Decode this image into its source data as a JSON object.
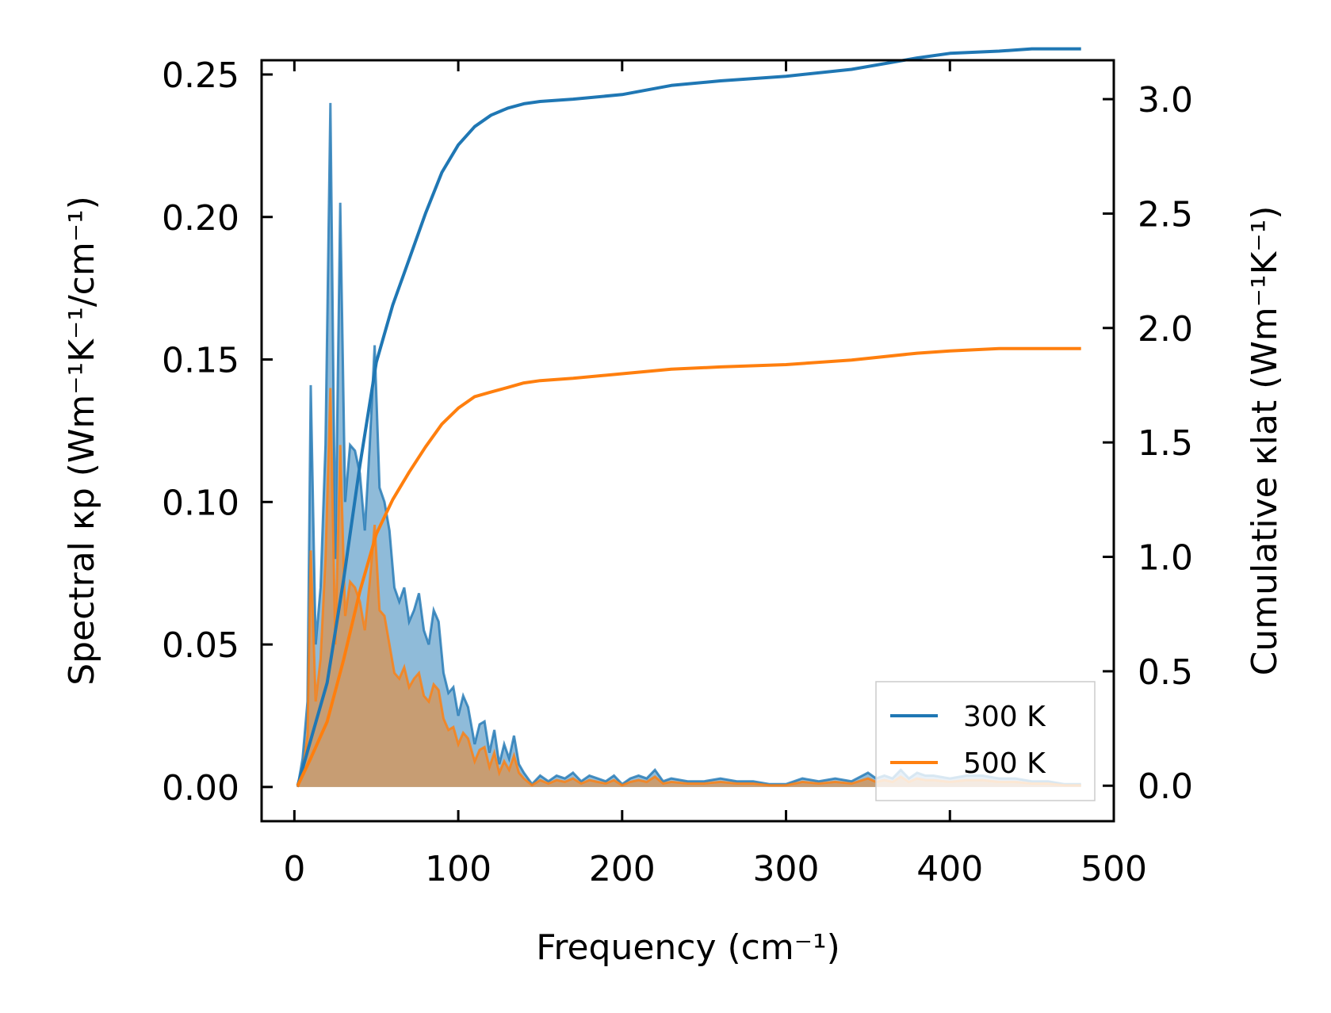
{
  "chart_data": {
    "type": "line",
    "xlabel": "Frequency (cm⁻¹)",
    "ylabel_left": "Spectral κp (Wm⁻¹K⁻¹/cm⁻¹)",
    "ylabel_right": "Cumulative κlat (Wm⁻¹K⁻¹)",
    "xlim": [
      -20,
      500
    ],
    "ylim_left": [
      -0.012,
      0.255
    ],
    "ylim_right": [
      -0.155,
      3.17
    ],
    "x_ticks": [
      0,
      100,
      200,
      300,
      400,
      500
    ],
    "y_left_ticks": [
      0.0,
      0.05,
      0.1,
      0.15,
      0.2,
      0.25
    ],
    "y_left_tick_labels": [
      "0.00",
      "0.05",
      "0.10",
      "0.15",
      "0.20",
      "0.25"
    ],
    "y_right_ticks": [
      0.0,
      0.5,
      1.0,
      1.5,
      2.0,
      2.5,
      3.0
    ],
    "y_right_tick_labels": [
      "0.0",
      "0.5",
      "1.0",
      "1.5",
      "2.0",
      "2.5",
      "3.0"
    ],
    "legend": {
      "position": "lower-right",
      "entries": [
        "300 K",
        "500 K"
      ]
    },
    "colors": {
      "300K": "#1f77b4",
      "500K": "#ff7f0e"
    },
    "series_spectral": [
      {
        "name": "300 K",
        "axis": "left",
        "kind": "filled",
        "x": [
          2,
          5,
          8,
          10,
          13,
          16,
          19,
          22,
          25,
          28,
          31,
          34,
          37,
          40,
          43,
          46,
          49,
          52,
          55,
          58,
          61,
          64,
          67,
          70,
          73,
          76,
          79,
          82,
          85,
          88,
          91,
          94,
          97,
          100,
          103,
          106,
          110,
          113,
          116,
          119,
          122,
          125,
          128,
          131,
          134,
          137,
          140,
          145,
          150,
          155,
          160,
          165,
          170,
          175,
          180,
          185,
          190,
          195,
          200,
          205,
          210,
          215,
          220,
          225,
          230,
          240,
          250,
          260,
          270,
          280,
          290,
          300,
          310,
          320,
          330,
          340,
          350,
          355,
          360,
          365,
          370,
          375,
          380,
          385,
          390,
          400,
          410,
          420,
          430,
          440,
          450,
          460,
          470,
          480
        ],
        "y": [
          0.0,
          0.01,
          0.03,
          0.141,
          0.05,
          0.07,
          0.12,
          0.24,
          0.08,
          0.205,
          0.1,
          0.12,
          0.118,
          0.11,
          0.09,
          0.12,
          0.155,
          0.105,
          0.1,
          0.09,
          0.07,
          0.065,
          0.07,
          0.058,
          0.062,
          0.068,
          0.055,
          0.05,
          0.062,
          0.058,
          0.04,
          0.033,
          0.035,
          0.025,
          0.032,
          0.028,
          0.015,
          0.022,
          0.023,
          0.012,
          0.02,
          0.008,
          0.015,
          0.01,
          0.018,
          0.008,
          0.005,
          0.001,
          0.004,
          0.002,
          0.004,
          0.003,
          0.005,
          0.002,
          0.004,
          0.003,
          0.002,
          0.004,
          0.001,
          0.003,
          0.004,
          0.003,
          0.006,
          0.002,
          0.003,
          0.002,
          0.002,
          0.003,
          0.002,
          0.002,
          0.001,
          0.001,
          0.003,
          0.002,
          0.003,
          0.002,
          0.005,
          0.003,
          0.004,
          0.003,
          0.006,
          0.003,
          0.005,
          0.004,
          0.004,
          0.003,
          0.004,
          0.004,
          0.003,
          0.003,
          0.002,
          0.002,
          0.001,
          0.001
        ]
      },
      {
        "name": "500 K",
        "axis": "left",
        "kind": "filled",
        "x": [
          2,
          5,
          8,
          10,
          13,
          16,
          19,
          22,
          25,
          28,
          31,
          34,
          37,
          40,
          43,
          46,
          49,
          52,
          55,
          58,
          61,
          64,
          67,
          70,
          73,
          76,
          79,
          82,
          85,
          88,
          91,
          94,
          97,
          100,
          103,
          106,
          110,
          113,
          116,
          119,
          122,
          125,
          128,
          131,
          134,
          137,
          140,
          145,
          150,
          155,
          160,
          165,
          170,
          175,
          180,
          185,
          190,
          195,
          200,
          205,
          210,
          215,
          220,
          225,
          230,
          240,
          250,
          260,
          270,
          280,
          290,
          300,
          310,
          320,
          330,
          340,
          350,
          355,
          360,
          365,
          370,
          375,
          380,
          385,
          390,
          400,
          410,
          420,
          430,
          440,
          450,
          460,
          470,
          480
        ],
        "y": [
          0.0,
          0.005,
          0.018,
          0.083,
          0.03,
          0.045,
          0.08,
          0.14,
          0.05,
          0.12,
          0.06,
          0.072,
          0.07,
          0.065,
          0.055,
          0.072,
          0.092,
          0.062,
          0.06,
          0.05,
          0.04,
          0.038,
          0.042,
          0.035,
          0.038,
          0.04,
          0.032,
          0.03,
          0.036,
          0.034,
          0.024,
          0.02,
          0.021,
          0.015,
          0.019,
          0.017,
          0.009,
          0.013,
          0.014,
          0.007,
          0.012,
          0.005,
          0.009,
          0.006,
          0.011,
          0.005,
          0.003,
          0.0006,
          0.0024,
          0.0012,
          0.0024,
          0.0018,
          0.003,
          0.0012,
          0.0024,
          0.0018,
          0.0012,
          0.0024,
          0.0006,
          0.0018,
          0.0024,
          0.0018,
          0.0036,
          0.0012,
          0.0018,
          0.0012,
          0.0012,
          0.0018,
          0.0012,
          0.0012,
          0.0006,
          0.0006,
          0.0018,
          0.0012,
          0.0018,
          0.0012,
          0.003,
          0.0018,
          0.0024,
          0.0018,
          0.0036,
          0.0018,
          0.003,
          0.0024,
          0.0024,
          0.0018,
          0.0024,
          0.0024,
          0.0018,
          0.0018,
          0.0012,
          0.0012,
          0.0006,
          0.0006
        ]
      }
    ],
    "series_cumulative": [
      {
        "name": "300 K",
        "axis": "right",
        "kind": "line",
        "x": [
          2,
          10,
          20,
          30,
          40,
          50,
          60,
          70,
          80,
          90,
          100,
          110,
          120,
          130,
          140,
          150,
          170,
          200,
          230,
          260,
          300,
          340,
          380,
          400,
          430,
          450,
          480
        ],
        "y": [
          0.0,
          0.2,
          0.45,
          0.9,
          1.4,
          1.85,
          2.1,
          2.3,
          2.5,
          2.68,
          2.8,
          2.88,
          2.93,
          2.96,
          2.98,
          2.99,
          3.0,
          3.02,
          3.06,
          3.08,
          3.1,
          3.13,
          3.18,
          3.2,
          3.21,
          3.22,
          3.22
        ]
      },
      {
        "name": "500 K",
        "axis": "right",
        "kind": "line",
        "x": [
          2,
          10,
          20,
          30,
          40,
          50,
          60,
          70,
          80,
          90,
          100,
          110,
          120,
          130,
          140,
          150,
          170,
          200,
          230,
          260,
          300,
          340,
          380,
          400,
          430,
          450,
          480
        ],
        "y": [
          0.0,
          0.12,
          0.28,
          0.55,
          0.85,
          1.1,
          1.25,
          1.37,
          1.48,
          1.58,
          1.65,
          1.7,
          1.72,
          1.74,
          1.76,
          1.77,
          1.78,
          1.8,
          1.82,
          1.83,
          1.84,
          1.86,
          1.89,
          1.9,
          1.91,
          1.91,
          1.91
        ]
      }
    ]
  }
}
